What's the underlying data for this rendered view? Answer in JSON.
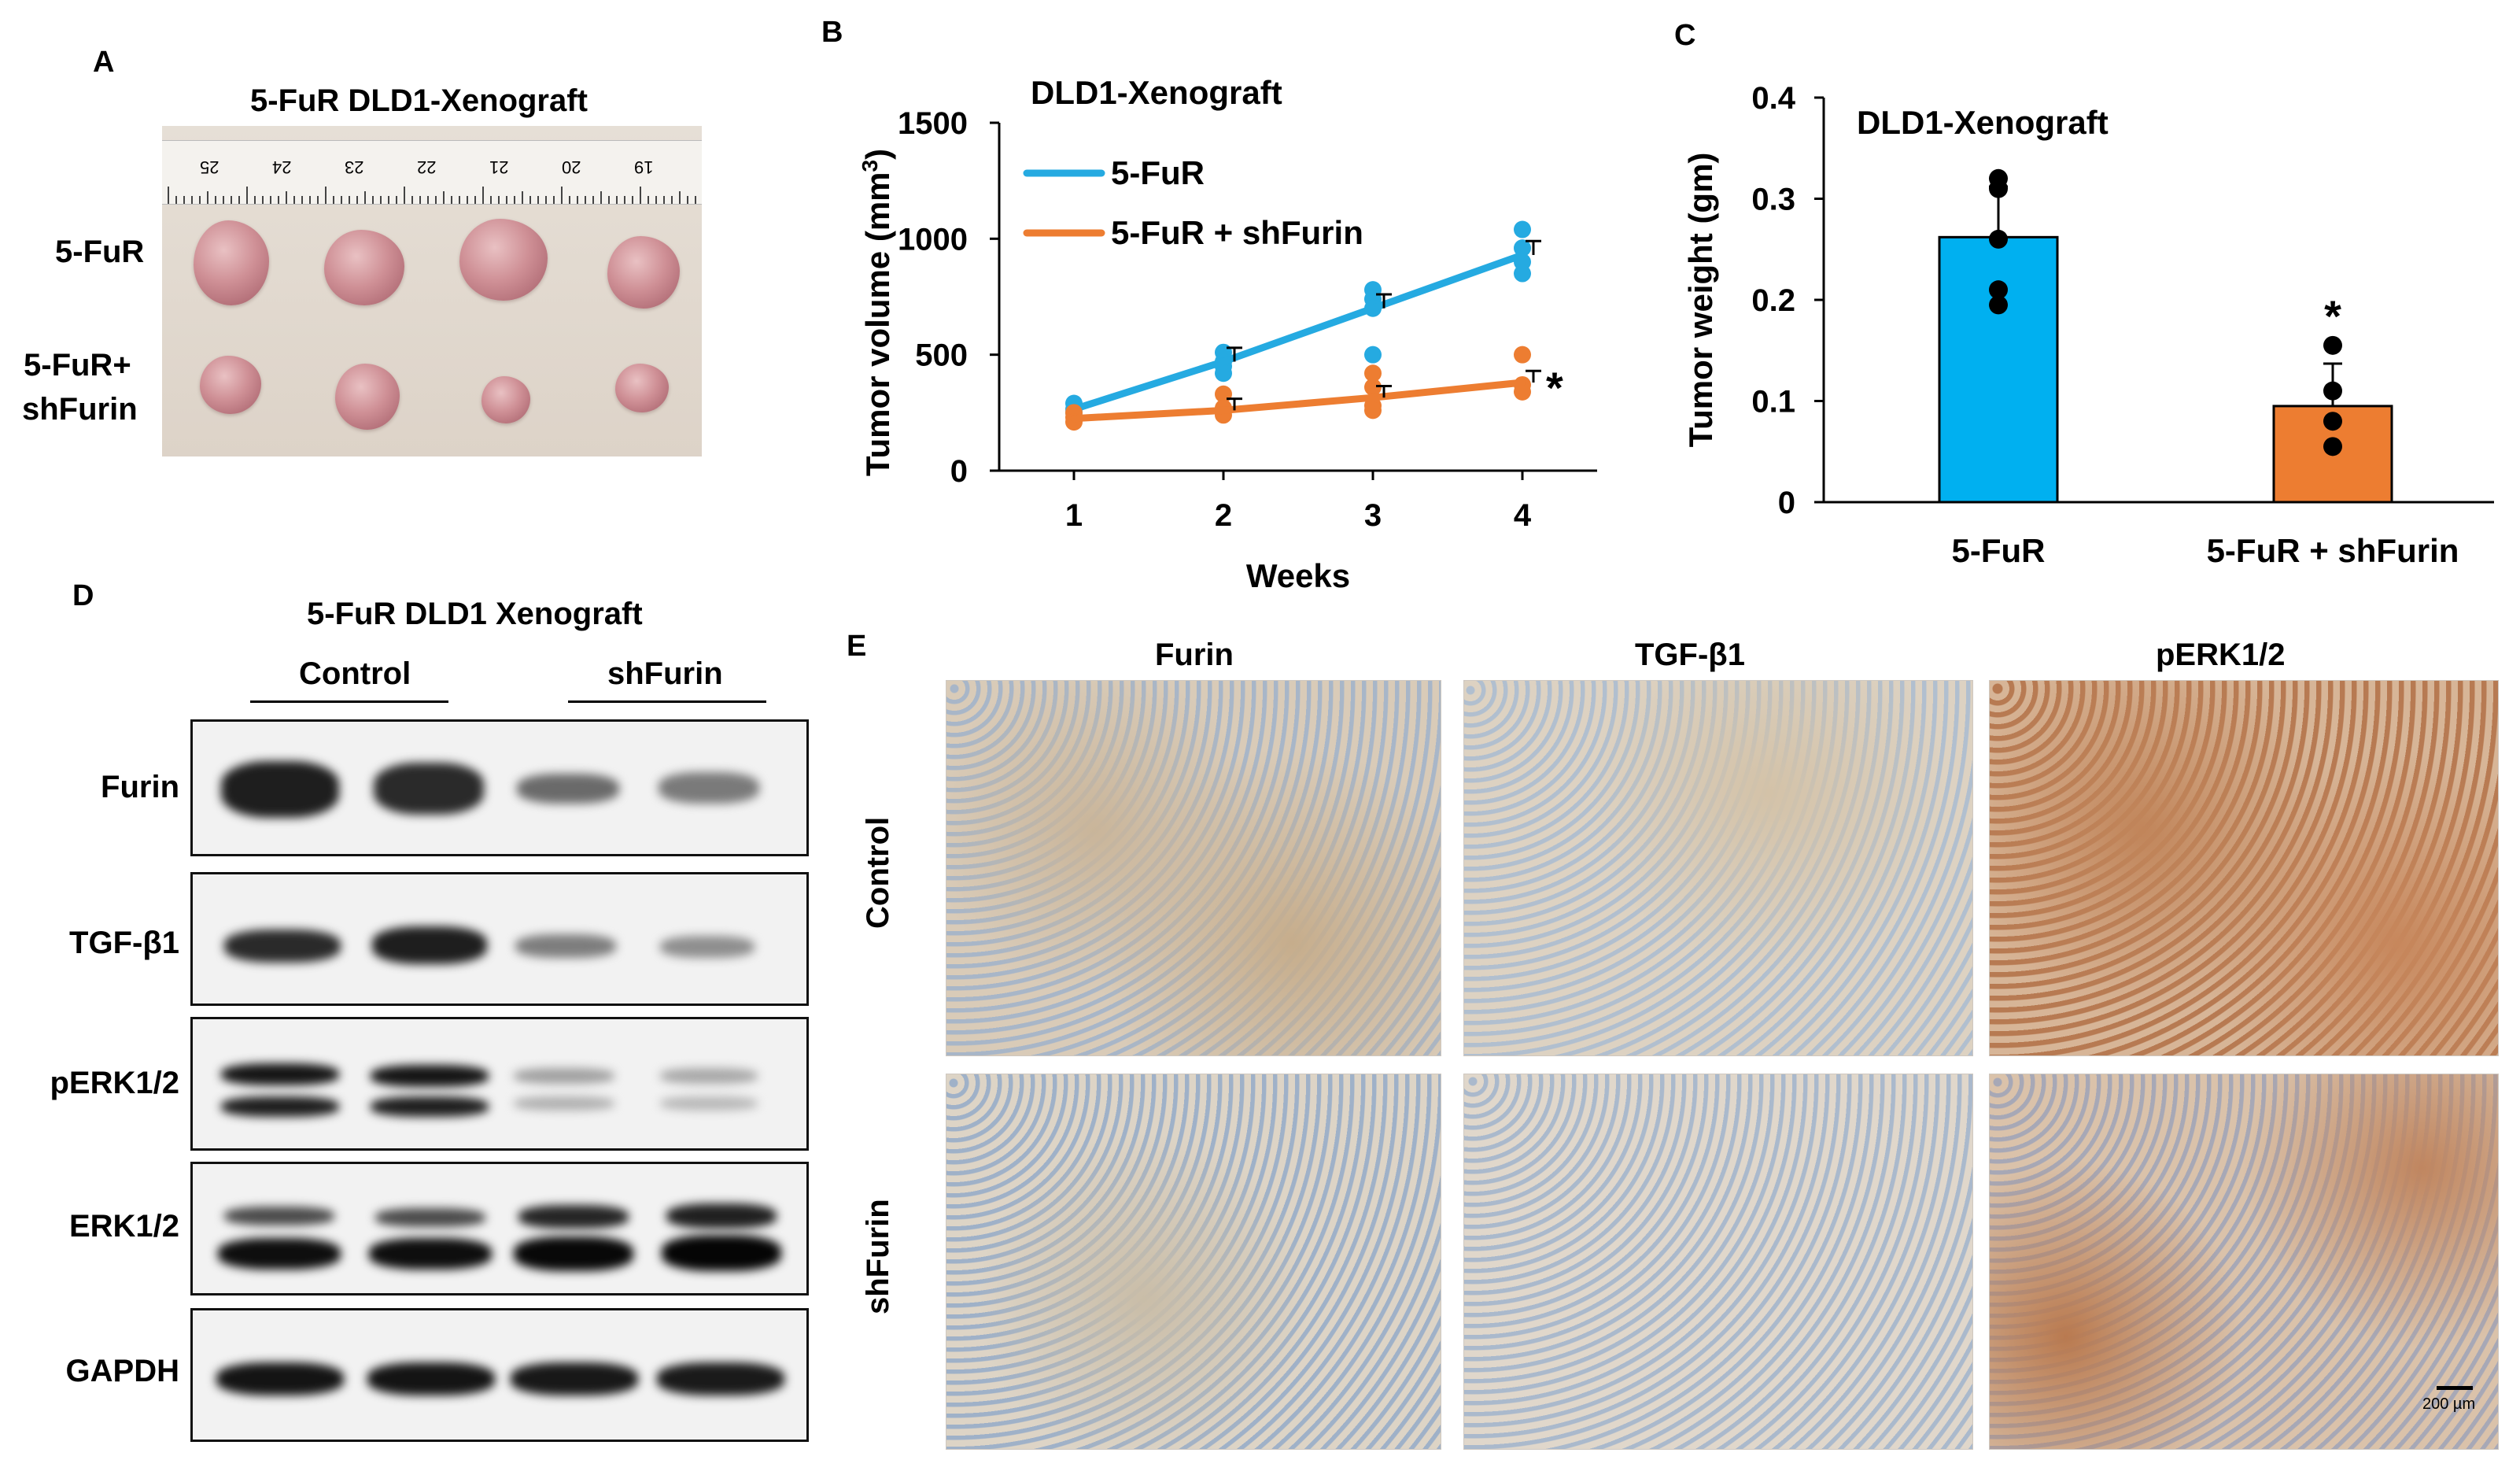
{
  "panels": {
    "A": {
      "letter": "A",
      "title": "5-FuR DLD1-Xenograft",
      "row_labels": [
        "5-FuR",
        "5-FuR+",
        "shFurin"
      ],
      "ruler_numbers": [
        "25",
        "24",
        "23",
        "22",
        "21",
        "20",
        "19"
      ]
    },
    "B": {
      "letter": "B",
      "significance": "*",
      "ylabel_base": "Tumor volume (mm",
      "ylabel_sup": "3",
      "ylabel_close": ")"
    },
    "C": {
      "letter": "C",
      "significance": "*"
    },
    "D": {
      "letter": "D",
      "title": "5-FuR DLD1 Xenograft",
      "group_labels": [
        "Control",
        "shFurin"
      ],
      "blot_labels": [
        "Furin",
        "TGF-β1",
        "pERK1/2",
        "ERK1/2",
        "GAPDH"
      ]
    },
    "E": {
      "letter": "E",
      "column_labels": [
        "Furin",
        "TGF-β1",
        "pERK1/2"
      ],
      "row_labels": [
        "Control",
        "shFurin"
      ],
      "scale_bar": "200 µm"
    }
  },
  "chart_data": [
    {
      "type": "line",
      "title": "DLD1-Xenograft",
      "xlabel": "Weeks",
      "ylabel": "Tumor volume (mm3)",
      "x": [
        1,
        2,
        3,
        4
      ],
      "ylim": [
        0,
        1500
      ],
      "yticks": [
        0,
        500,
        1000,
        1500
      ],
      "grid": false,
      "legend_position": "top-left",
      "series": [
        {
          "name": "5-FuR",
          "color": "#25aae1",
          "values": [
            265,
            470,
            700,
            930
          ],
          "points": [
            [
              1,
              290
            ],
            [
              1,
              265
            ],
            [
              1,
              250
            ],
            [
              2,
              510
            ],
            [
              2,
              470
            ],
            [
              2,
              450
            ],
            [
              2,
              420
            ],
            [
              3,
              780
            ],
            [
              3,
              740
            ],
            [
              3,
              700
            ],
            [
              3,
              500
            ],
            [
              4,
              1040
            ],
            [
              4,
              960
            ],
            [
              4,
              900
            ],
            [
              4,
              850
            ]
          ]
        },
        {
          "name": "5-FuR + shFurin",
          "color": "#ed7d31",
          "values": [
            225,
            260,
            315,
            380
          ],
          "points": [
            [
              1,
              250
            ],
            [
              1,
              230
            ],
            [
              1,
              210
            ],
            [
              2,
              330
            ],
            [
              2,
              270
            ],
            [
              2,
              240
            ],
            [
              3,
              420
            ],
            [
              3,
              360
            ],
            [
              3,
              280
            ],
            [
              3,
              260
            ],
            [
              4,
              500
            ],
            [
              4,
              370
            ],
            [
              4,
              340
            ]
          ]
        }
      ]
    },
    {
      "type": "bar",
      "title": "DLD1-Xenograft",
      "xlabel": "",
      "ylabel": "Tumor weight (gm)",
      "categories": [
        "5-FuR",
        "5-FuR + shFurin"
      ],
      "values": [
        0.262,
        0.095
      ],
      "errors": [
        0.05,
        0.042
      ],
      "ylim": [
        0,
        0.4
      ],
      "yticks": [
        0,
        0.1,
        0.2,
        0.3,
        0.4
      ],
      "colors": [
        "#00b0f0",
        "#ed7d31"
      ],
      "points": [
        [
          0.32,
          0.31,
          0.26,
          0.21,
          0.195
        ],
        [
          0.155,
          0.11,
          0.08,
          0.055
        ]
      ]
    }
  ]
}
